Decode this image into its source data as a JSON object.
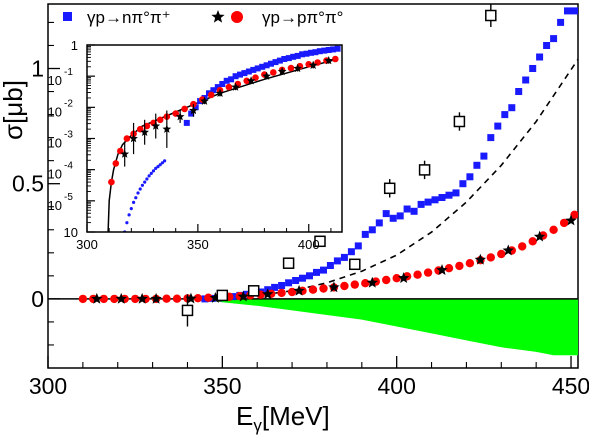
{
  "chart_data": [
    {
      "type": "scatter",
      "panel": "main",
      "xlabel": "E_γ[MeV]",
      "xlabel_main": "E",
      "xlabel_sub": "γ",
      "xlabel_unit": "[MeV]",
      "ylabel": "σ[μb]",
      "xlim": [
        300,
        452
      ],
      "ylim": [
        -0.3,
        1.28
      ],
      "x_ticks": [
        300,
        350,
        400,
        450
      ],
      "y_ticks": [
        0,
        0.5,
        1
      ],
      "x_tick_labels": [
        "300",
        "350",
        "400",
        "450"
      ],
      "y_tick_labels": [
        "0",
        "0.5",
        "1"
      ],
      "grid": false,
      "legend_position": "top",
      "legend": [
        {
          "label": "γp→nπ°π⁺",
          "marker": "square",
          "color": "#1a1aff"
        },
        {
          "label": "γp→pπ°π°",
          "marker": "star+circle",
          "color": "#ff0000"
        }
      ],
      "series": [
        {
          "name": "γp→nπ°π⁺",
          "marker": "filled-square",
          "color": "#1a1aff",
          "x": [
            345,
            347,
            349,
            351,
            353,
            355,
            357,
            359,
            361,
            363,
            365,
            367,
            369,
            371,
            373,
            375,
            377,
            379,
            381,
            383,
            385,
            387,
            389,
            391,
            393,
            395,
            397,
            399,
            401,
            403,
            405,
            407,
            409,
            411,
            413,
            415,
            417,
            419,
            421,
            423,
            425,
            427,
            429,
            431,
            433,
            435,
            437,
            439,
            441,
            443,
            445,
            447,
            449,
            451
          ],
          "y": [
            0.0,
            0.002,
            0.004,
            0.008,
            0.01,
            0.015,
            0.02,
            0.025,
            0.03,
            0.04,
            0.05,
            0.058,
            0.07,
            0.08,
            0.09,
            0.1,
            0.115,
            0.125,
            0.145,
            0.165,
            0.18,
            0.205,
            0.23,
            0.28,
            0.3,
            0.33,
            0.37,
            0.35,
            0.36,
            0.39,
            0.38,
            0.41,
            0.42,
            0.43,
            0.44,
            0.45,
            0.46,
            0.5,
            0.53,
            0.58,
            0.62,
            0.7,
            0.75,
            0.8,
            0.83,
            0.9,
            0.95,
            1.0,
            1.05,
            1.1,
            1.13,
            1.2,
            1.25,
            1.25
          ]
        },
        {
          "name": "γp→pπ°π° (circles)",
          "marker": "filled-circle",
          "color": "#ff0000",
          "x": [
            310,
            313,
            316,
            319,
            322,
            325,
            328,
            331,
            334,
            337,
            340,
            343,
            346,
            349,
            352,
            355,
            358,
            361,
            364,
            367,
            370,
            373,
            376,
            379,
            382,
            385,
            388,
            391,
            394,
            397,
            400,
            403,
            406,
            409,
            412,
            415,
            418,
            421,
            424,
            427,
            430,
            433,
            436,
            439,
            442,
            445,
            448,
            451
          ],
          "y": [
            0.0,
            0.0,
            0.0,
            0.0,
            0.0,
            0.0,
            0.0,
            0.0,
            0.001,
            0.001,
            0.002,
            0.003,
            0.005,
            0.007,
            0.009,
            0.012,
            0.015,
            0.018,
            0.022,
            0.026,
            0.03,
            0.035,
            0.04,
            0.045,
            0.05,
            0.056,
            0.062,
            0.068,
            0.075,
            0.082,
            0.09,
            0.098,
            0.105,
            0.114,
            0.123,
            0.133,
            0.143,
            0.155,
            0.168,
            0.18,
            0.195,
            0.21,
            0.228,
            0.25,
            0.275,
            0.3,
            0.33,
            0.365
          ]
        },
        {
          "name": "γp→pπ°π° (stars)",
          "marker": "star",
          "color": "#000000",
          "x": [
            314,
            321,
            327,
            331,
            341,
            348,
            356,
            363,
            372,
            382,
            393,
            402,
            413,
            424,
            432,
            441,
            450
          ],
          "y": [
            0.0,
            0.0,
            0.0,
            0.0,
            0.001,
            0.004,
            0.01,
            0.02,
            0.035,
            0.05,
            0.07,
            0.09,
            0.125,
            0.17,
            0.21,
            0.27,
            0.34
          ]
        },
        {
          "name": "open squares",
          "marker": "open-square",
          "color": "#000000",
          "x": [
            340,
            350,
            359,
            369,
            378,
            388,
            398,
            408,
            418,
            427
          ],
          "y": [
            -0.05,
            0.015,
            0.035,
            0.155,
            0.25,
            0.15,
            0.48,
            0.56,
            0.77,
            1.23
          ],
          "yerr": [
            0.07,
            0.02,
            0.02,
            0.02,
            0.02,
            0.02,
            0.04,
            0.04,
            0.04,
            0.05
          ]
        },
        {
          "name": "dashed curve",
          "style": "dashed-line",
          "color": "#000000",
          "x": [
            340,
            350,
            360,
            370,
            380,
            390,
            400,
            410,
            420,
            430,
            440,
            452
          ],
          "y": [
            0.0,
            0.004,
            0.015,
            0.035,
            0.07,
            0.12,
            0.19,
            0.29,
            0.42,
            0.58,
            0.77,
            1.04
          ]
        },
        {
          "name": "green band",
          "style": "filled-area-below-zero",
          "color": "#00ff00",
          "x": [
            340,
            350,
            360,
            370,
            380,
            390,
            400,
            410,
            420,
            430,
            440,
            445,
            452
          ],
          "y": [
            0.0,
            -0.015,
            -0.03,
            -0.05,
            -0.07,
            -0.09,
            -0.12,
            -0.15,
            -0.18,
            -0.21,
            -0.23,
            -0.245,
            -0.245
          ]
        }
      ]
    },
    {
      "type": "scatter",
      "panel": "inset",
      "yscale": "log",
      "xlim": [
        300,
        415
      ],
      "ylim_log10": [
        -6,
        0
      ],
      "x_ticks": [
        300,
        350,
        400
      ],
      "x_tick_labels": [
        "300",
        "350",
        "400"
      ],
      "y_tick_labels": [
        {
          "base": "1",
          "exp": ""
        },
        {
          "base": "10",
          "exp": "-1"
        },
        {
          "base": "10",
          "exp": "-2"
        },
        {
          "base": "10",
          "exp": "-3"
        },
        {
          "base": "10",
          "exp": "-4"
        },
        {
          "base": "10",
          "exp": "-5"
        },
        {
          "base": "10",
          "exp": ""
        }
      ],
      "series": [
        {
          "name": "blue squares",
          "marker": "filled-square",
          "color": "#1a1aff",
          "x": [
            345,
            347,
            349,
            351,
            353,
            355,
            357,
            359,
            361,
            363,
            365,
            367,
            369,
            371,
            373,
            375,
            377,
            379,
            381,
            383,
            385,
            387,
            389,
            391,
            393,
            395,
            397,
            399,
            401,
            403,
            405,
            407,
            409,
            411,
            413
          ],
          "log10y": [
            -2.5,
            -2.2,
            -2.0,
            -1.8,
            -1.7,
            -1.55,
            -1.45,
            -1.35,
            -1.25,
            -1.15,
            -1.1,
            -1.0,
            -0.95,
            -0.9,
            -0.85,
            -0.8,
            -0.75,
            -0.7,
            -0.65,
            -0.6,
            -0.55,
            -0.5,
            -0.45,
            -0.42,
            -0.38,
            -0.35,
            -0.3,
            -0.28,
            -0.25,
            -0.23,
            -0.2,
            -0.18,
            -0.16,
            -0.14,
            -0.12
          ]
        },
        {
          "name": "red circles",
          "marker": "filled-circle",
          "color": "#ff0000",
          "x": [
            311,
            313,
            315,
            318,
            321,
            324,
            327,
            330,
            333,
            336,
            340,
            344,
            348,
            352,
            356,
            360,
            364,
            368,
            372,
            376,
            380,
            384,
            388,
            392,
            396,
            400,
            404,
            408,
            412
          ],
          "log10y": [
            -4.4,
            -3.8,
            -3.4,
            -3.0,
            -2.85,
            -2.7,
            -2.6,
            -2.5,
            -2.4,
            -2.3,
            -2.2,
            -2.05,
            -1.9,
            -1.75,
            -1.6,
            -1.45,
            -1.35,
            -1.25,
            -1.15,
            -1.05,
            -0.95,
            -0.88,
            -0.8,
            -0.74,
            -0.68,
            -0.62,
            -0.56,
            -0.5,
            -0.45
          ]
        },
        {
          "name": "black stars",
          "marker": "star",
          "color": "#000000",
          "x": [
            317,
            321,
            326,
            331,
            336,
            342,
            348,
            353,
            360,
            367,
            374,
            381,
            388,
            395,
            402,
            409
          ],
          "log10y": [
            -3.5,
            -3.0,
            -2.8,
            -2.6,
            -2.7,
            -2.3,
            -2.1,
            -1.8,
            -1.55,
            -1.35,
            -1.15,
            -1.0,
            -0.85,
            -0.75,
            -0.65,
            -0.5
          ],
          "yerr_log": [
            0.4,
            0.5,
            0.4,
            0.4,
            0.6,
            0.2,
            0.2,
            0.1,
            0.1,
            0.1,
            0.1,
            0.1,
            0.1,
            0.1,
            0.1,
            0.1
          ]
        },
        {
          "name": "blue dotted threshold",
          "marker": "small-dot",
          "color": "#1a1aff",
          "x": [
            317,
            318,
            319,
            320,
            321,
            322,
            323,
            324,
            325,
            326,
            327,
            328,
            329,
            330,
            331,
            332,
            333,
            334,
            335
          ],
          "log10y": [
            -6.0,
            -5.7,
            -5.45,
            -5.25,
            -5.05,
            -4.9,
            -4.75,
            -4.62,
            -4.5,
            -4.4,
            -4.3,
            -4.2,
            -4.12,
            -4.04,
            -3.96,
            -3.9,
            -3.84,
            -3.78,
            -3.72
          ]
        },
        {
          "name": "black curve",
          "style": "solid-line",
          "color": "#000000",
          "x": [
            309.5,
            310,
            311,
            312,
            314,
            316,
            320,
            325,
            330,
            340,
            350,
            360,
            380,
            400,
            413
          ],
          "log10y": [
            -6.0,
            -5.0,
            -4.4,
            -4.0,
            -3.5,
            -3.2,
            -2.9,
            -2.6,
            -2.45,
            -2.15,
            -1.85,
            -1.55,
            -1.1,
            -0.7,
            -0.45
          ]
        }
      ]
    }
  ]
}
